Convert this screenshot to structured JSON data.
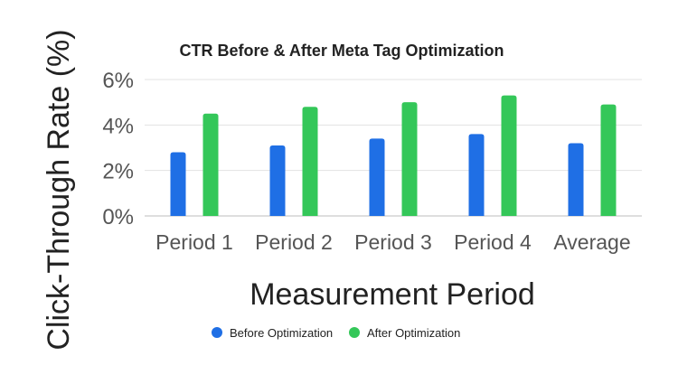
{
  "chart_data": {
    "type": "bar",
    "title": "CTR Before & After Meta Tag Optimization",
    "xlabel": "Measurement Period",
    "ylabel": "Click-Through Rate (%)",
    "categories": [
      "Period 1",
      "Period 2",
      "Period 3",
      "Period 4",
      "Average"
    ],
    "series": [
      {
        "name": "Before Optimization",
        "values": [
          2.8,
          3.1,
          3.4,
          3.6,
          3.2
        ],
        "color": "#1f6fe5"
      },
      {
        "name": "After Optimization",
        "values": [
          4.5,
          4.8,
          5.0,
          5.3,
          4.9
        ],
        "color": "#34c759"
      }
    ],
    "ylim": [
      0,
      6
    ],
    "yticks": [
      {
        "value": 0,
        "label": "0%"
      },
      {
        "value": 2,
        "label": "2%"
      },
      {
        "value": 4,
        "label": "4%"
      },
      {
        "value": 6,
        "label": "6%"
      }
    ],
    "grid": true,
    "legend_position": "bottom-center"
  }
}
